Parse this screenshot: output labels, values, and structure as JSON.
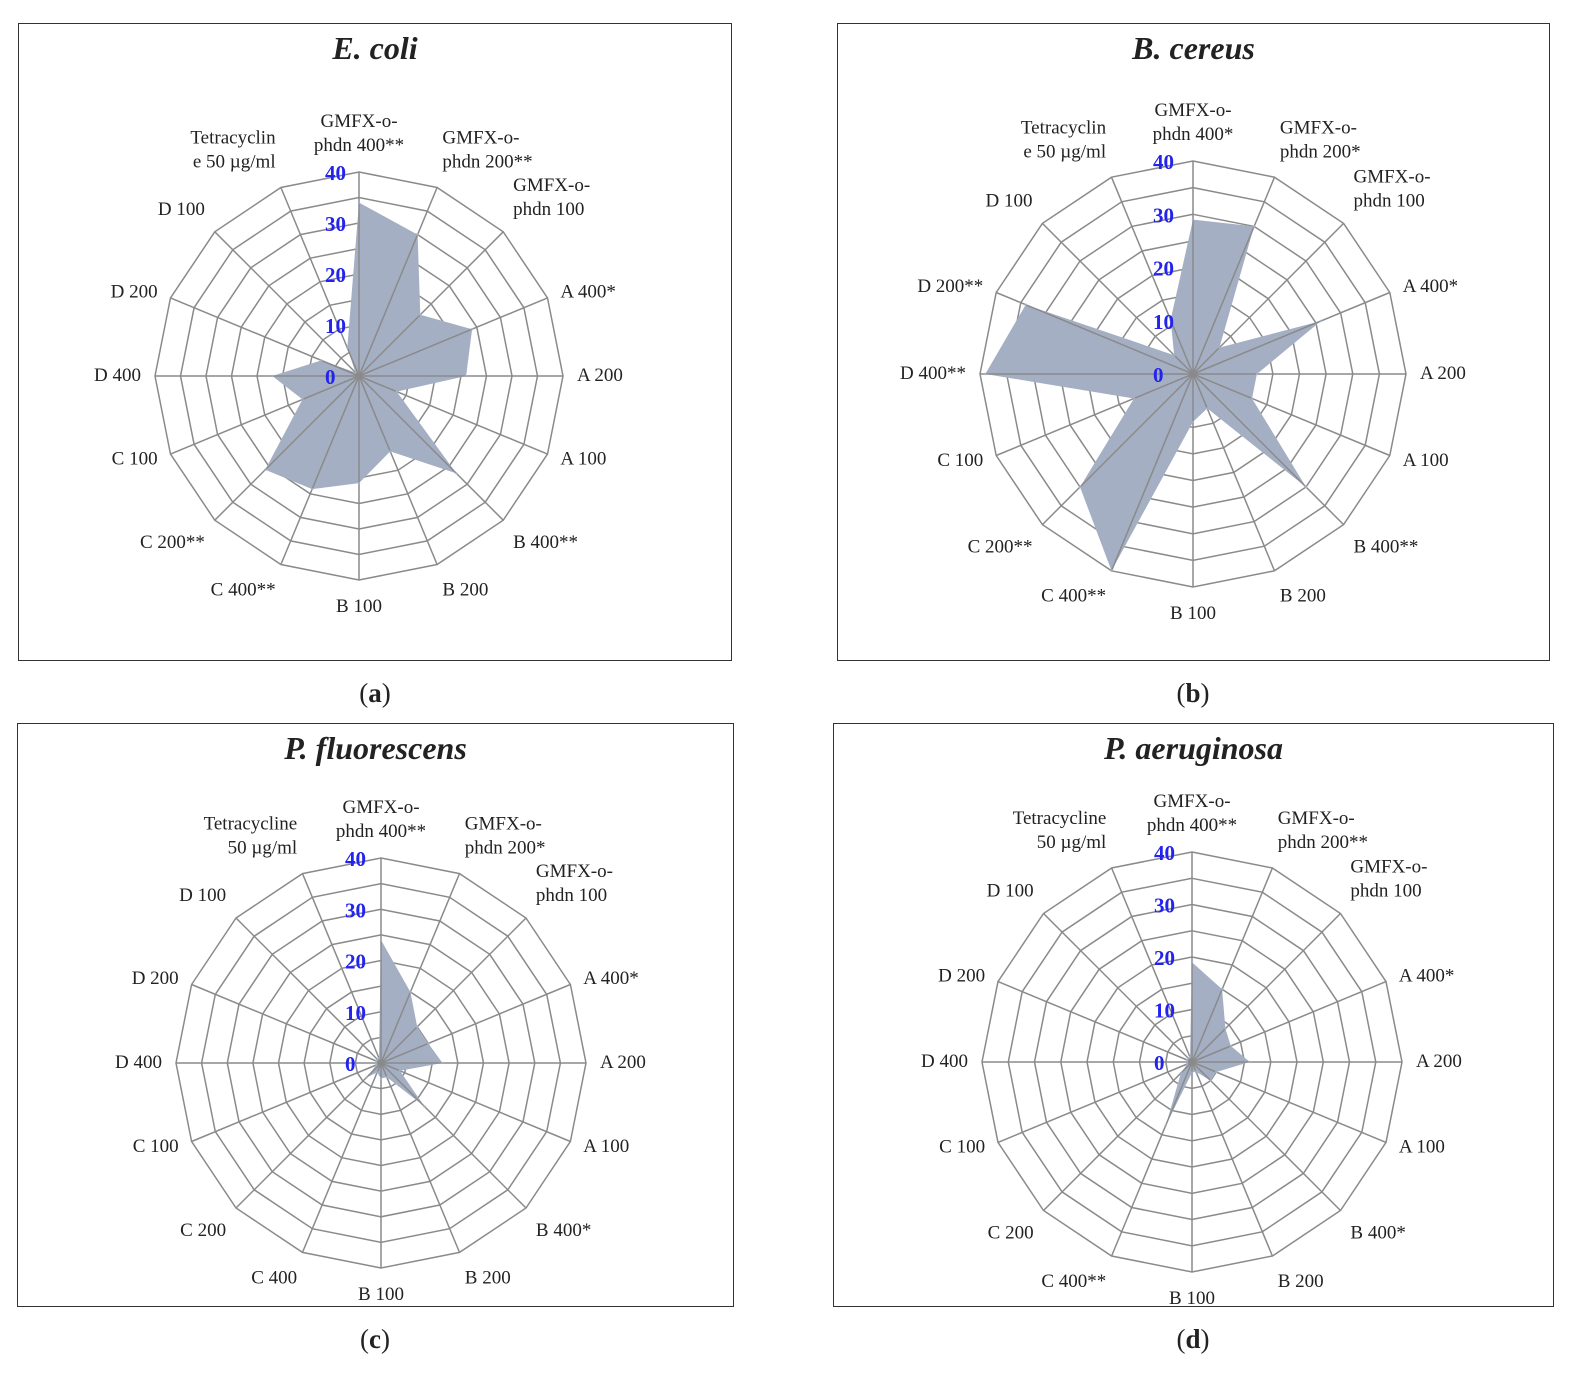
{
  "chart_data": [
    {
      "type": "radar",
      "panel": "a",
      "title": "E. coli",
      "categories": [
        "GMFX-o-phdn 400**",
        "GMFX-o-phdn 200**",
        "GMFX-o-phdn 100",
        "A 400*",
        "A 200",
        "A 100",
        "B 400**",
        "B 200",
        "B 100",
        "C 400**",
        "C 200**",
        "C 100",
        "D 400",
        "D 200",
        "D 100",
        "Tetracycline 50 µg/ml"
      ],
      "label_lines": [
        [
          "GMFX-o-",
          "phdn 400**"
        ],
        [
          "GMFX-o-",
          "phdn 200**"
        ],
        [
          "GMFX-o-",
          "phdn 100"
        ],
        [
          "A 400*"
        ],
        [
          "A 200"
        ],
        [
          "A 100"
        ],
        [
          "B 400**"
        ],
        [
          "B 200"
        ],
        [
          "B 100"
        ],
        [
          "C 400**"
        ],
        [
          "C 200**"
        ],
        [
          "C 100"
        ],
        [
          "D 400"
        ],
        [
          "D 200"
        ],
        [
          "D 100"
        ],
        [
          "Tetracyclin",
          "e 50 µg/ml"
        ]
      ],
      "values": [
        34,
        30,
        17,
        24,
        21,
        8,
        27,
        16,
        21,
        24,
        26,
        12,
        17,
        8,
        1,
        6
      ],
      "rlim": [
        0,
        40
      ],
      "ticks": [
        0,
        10,
        20,
        30,
        40
      ]
    },
    {
      "type": "radar",
      "panel": "b",
      "title": "B. cereus",
      "categories": [
        "GMFX-o-phdn 400*",
        "GMFX-o-phdn 200*",
        "GMFX-o-phdn 100",
        "A 400*",
        "A 200",
        "A 100",
        "B 400**",
        "B 200",
        "B 100",
        "C 400**",
        "C 200**",
        "C 100",
        "D 400**",
        "D 200**",
        "D 100",
        "Tetracycline 50 µg/ml"
      ],
      "label_lines": [
        [
          "GMFX-o-",
          "phdn 400*"
        ],
        [
          "GMFX-o-",
          "phdn 200*"
        ],
        [
          "GMFX-o-",
          "phdn 100"
        ],
        [
          "A 400*"
        ],
        [
          "A 200"
        ],
        [
          "A 100"
        ],
        [
          "B 400**"
        ],
        [
          "B 200"
        ],
        [
          "B 100"
        ],
        [
          "C 400**"
        ],
        [
          "C 200**"
        ],
        [
          "C 100"
        ],
        [
          "D 400**"
        ],
        [
          "D 200**"
        ],
        [
          "D 100"
        ],
        [
          "Tetracyclin",
          "e 50 µg/ml"
        ]
      ],
      "values": [
        29,
        30,
        7,
        26,
        12,
        12,
        30,
        7,
        9,
        40,
        30,
        12,
        39,
        34,
        5,
        11
      ],
      "rlim": [
        0,
        40
      ],
      "ticks": [
        0,
        10,
        20,
        30,
        40
      ]
    },
    {
      "type": "radar",
      "panel": "c",
      "title": "P.  fluorescens",
      "categories": [
        "GMFX-o-phdn 400**",
        "GMFX-o-phdn 200*",
        "GMFX-o-phdn 100",
        "A 400*",
        "A 200",
        "A 100",
        "B 400*",
        "B 200",
        "B 100",
        "C 400",
        "C 200",
        "C 100",
        "D 400",
        "D 200",
        "D 100",
        "Tetracycline 50 µg/ml"
      ],
      "label_lines": [
        [
          "GMFX-o-",
          "phdn 400**"
        ],
        [
          "GMFX-o-",
          "phdn 200*"
        ],
        [
          "GMFX-o-",
          "phdn 100"
        ],
        [
          "A 400*"
        ],
        [
          "A 200"
        ],
        [
          "A 100"
        ],
        [
          "B 400*"
        ],
        [
          "B 200"
        ],
        [
          "B 100"
        ],
        [
          "C 400"
        ],
        [
          "C 200"
        ],
        [
          "C 100"
        ],
        [
          "D 400"
        ],
        [
          "D 200"
        ],
        [
          "D 100"
        ],
        [
          "Tetracycline",
          "50 µg/ml"
        ]
      ],
      "values": [
        24,
        15,
        10,
        10,
        12,
        4,
        12,
        3,
        3,
        2,
        4,
        1,
        1,
        1,
        1,
        1
      ],
      "rlim": [
        0,
        40
      ],
      "ticks": [
        0,
        10,
        20,
        30,
        40
      ]
    },
    {
      "type": "radar",
      "panel": "d",
      "title": "P. aeruginosa",
      "categories": [
        "GMFX-o-phdn 400**",
        "GMFX-o-phdn 200**",
        "GMFX-o-phdn 100",
        "A 400*",
        "A 200",
        "A 100",
        "B 400*",
        "B 200",
        "B 100",
        "C 400**",
        "C 200",
        "C 100",
        "D 400",
        "D 200",
        "D 100",
        "Tetracycline 50 µg/ml"
      ],
      "label_lines": [
        [
          "GMFX-o-",
          "phdn 400**"
        ],
        [
          "GMFX-o-",
          "phdn 200**"
        ],
        [
          "GMFX-o-",
          "phdn 100"
        ],
        [
          "A 400*"
        ],
        [
          "A 200"
        ],
        [
          "A 100"
        ],
        [
          "B 400*"
        ],
        [
          "B 200"
        ],
        [
          "B 100"
        ],
        [
          "C 400**"
        ],
        [
          "C 200"
        ],
        [
          "C 100"
        ],
        [
          "D 400"
        ],
        [
          "D 200"
        ],
        [
          "D 100"
        ],
        [
          "Tetracycline",
          "50 µg/ml"
        ]
      ],
      "values": [
        19,
        15,
        9,
        8,
        11,
        5,
        5,
        2,
        2,
        13,
        3,
        1,
        1,
        1,
        1,
        1
      ],
      "rlim": [
        0,
        40
      ],
      "ticks": [
        0,
        10,
        20,
        30,
        40
      ]
    }
  ],
  "sublabels": [
    {
      "open": "(",
      "letter": "a",
      "close": ")"
    },
    {
      "open": "(",
      "letter": "b",
      "close": ")"
    },
    {
      "open": "(",
      "letter": "c",
      "close": ")"
    },
    {
      "open": "(",
      "letter": "d",
      "close": ")"
    }
  ],
  "colors": {
    "area": "#a4afc3",
    "grid": "#8a8a8a",
    "tick": "#2323ee",
    "frame": "#333333"
  }
}
